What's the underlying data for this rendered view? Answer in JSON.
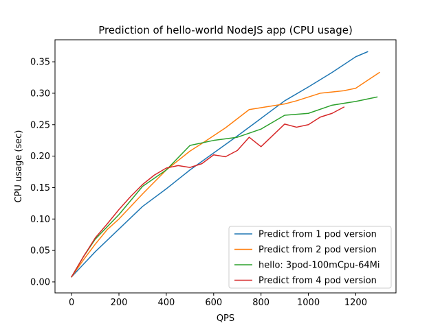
{
  "chart_data": {
    "type": "line",
    "title": "Prediction of hello-world NodeJS app (CPU usage)",
    "xlabel": "QPS",
    "ylabel": "CPU usage (sec)",
    "xlim": [
      -70,
      1370
    ],
    "ylim": [
      -0.0175,
      0.385
    ],
    "x_ticks": [
      0,
      200,
      400,
      600,
      800,
      1000,
      1200
    ],
    "x_tick_labels": [
      "0",
      "200",
      "400",
      "600",
      "800",
      "1000",
      "1200"
    ],
    "y_ticks": [
      0.0,
      0.05,
      0.1,
      0.15,
      0.2,
      0.25,
      0.3,
      0.35
    ],
    "y_tick_labels": [
      "0.00",
      "0.05",
      "0.10",
      "0.15",
      "0.20",
      "0.25",
      "0.30",
      "0.35"
    ],
    "grid": false,
    "legend_position": "lower-right",
    "series": [
      {
        "name": "Predict from 1 pod version",
        "color": "#1f77b4",
        "points": [
          [
            0,
            0.008
          ],
          [
            100,
            0.048
          ],
          [
            200,
            0.084
          ],
          [
            300,
            0.12
          ],
          [
            400,
            0.148
          ],
          [
            500,
            0.178
          ],
          [
            600,
            0.205
          ],
          [
            700,
            0.232
          ],
          [
            800,
            0.26
          ],
          [
            900,
            0.288
          ],
          [
            1000,
            0.31
          ],
          [
            1100,
            0.333
          ],
          [
            1200,
            0.358
          ],
          [
            1250,
            0.366
          ]
        ]
      },
      {
        "name": "Predict from 2 pod version",
        "color": "#ff7f0e",
        "points": [
          [
            0,
            0.008
          ],
          [
            50,
            0.035
          ],
          [
            100,
            0.06
          ],
          [
            150,
            0.083
          ],
          [
            200,
            0.1
          ],
          [
            300,
            0.14
          ],
          [
            400,
            0.178
          ],
          [
            500,
            0.208
          ],
          [
            550,
            0.22
          ],
          [
            650,
            0.245
          ],
          [
            750,
            0.274
          ],
          [
            800,
            0.277
          ],
          [
            850,
            0.28
          ],
          [
            900,
            0.283
          ],
          [
            950,
            0.288
          ],
          [
            1000,
            0.294
          ],
          [
            1050,
            0.3
          ],
          [
            1100,
            0.302
          ],
          [
            1150,
            0.304
          ],
          [
            1200,
            0.308
          ],
          [
            1300,
            0.333
          ]
        ]
      },
      {
        "name": "hello: 3pod-100mCpu-64Mi",
        "color": "#2ca02c",
        "points": [
          [
            0,
            0.008
          ],
          [
            50,
            0.04
          ],
          [
            100,
            0.068
          ],
          [
            200,
            0.107
          ],
          [
            300,
            0.152
          ],
          [
            400,
            0.178
          ],
          [
            500,
            0.217
          ],
          [
            600,
            0.225
          ],
          [
            700,
            0.23
          ],
          [
            800,
            0.243
          ],
          [
            900,
            0.265
          ],
          [
            1000,
            0.268
          ],
          [
            1100,
            0.281
          ],
          [
            1200,
            0.287
          ],
          [
            1290,
            0.294
          ]
        ]
      },
      {
        "name": "Predict from 4 pod version",
        "color": "#d62728",
        "points": [
          [
            0,
            0.008
          ],
          [
            50,
            0.04
          ],
          [
            100,
            0.07
          ],
          [
            150,
            0.092
          ],
          [
            200,
            0.115
          ],
          [
            250,
            0.136
          ],
          [
            300,
            0.155
          ],
          [
            350,
            0.17
          ],
          [
            400,
            0.181
          ],
          [
            450,
            0.185
          ],
          [
            500,
            0.182
          ],
          [
            550,
            0.188
          ],
          [
            600,
            0.202
          ],
          [
            650,
            0.199
          ],
          [
            700,
            0.209
          ],
          [
            750,
            0.23
          ],
          [
            800,
            0.215
          ],
          [
            900,
            0.251
          ],
          [
            950,
            0.246
          ],
          [
            1000,
            0.25
          ],
          [
            1050,
            0.262
          ],
          [
            1100,
            0.268
          ],
          [
            1150,
            0.278
          ]
        ]
      }
    ]
  }
}
